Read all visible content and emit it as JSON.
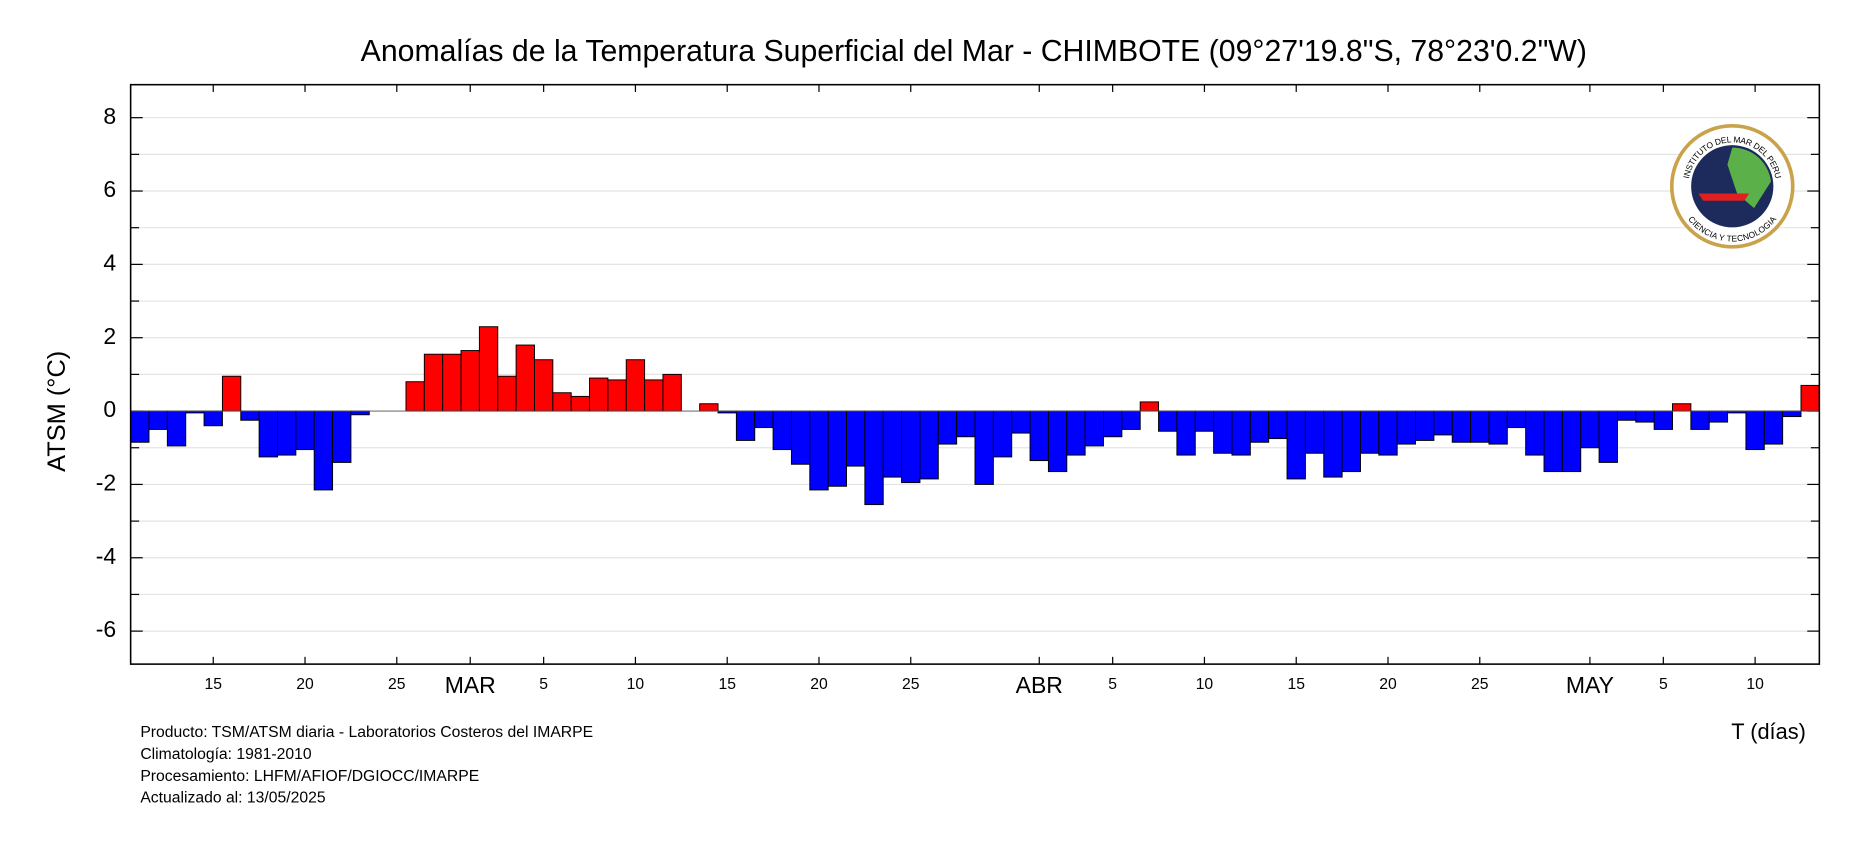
{
  "chart_data": {
    "type": "bar",
    "title": "Anomalías de la Temperatura Superficial del Mar - CHIMBOTE (09°27'19.8\"S, 78°23'0.2\"W)",
    "y_label": "ATSM (°C)",
    "x_label": "T (días)",
    "categories": [
      null,
      null,
      null,
      null,
      "15",
      null,
      null,
      null,
      null,
      "20",
      null,
      null,
      null,
      null,
      "25",
      null,
      null,
      null,
      "MAR",
      null,
      null,
      null,
      "5",
      null,
      null,
      null,
      null,
      "10",
      null,
      null,
      null,
      null,
      "15",
      null,
      null,
      null,
      null,
      "20",
      null,
      null,
      null,
      null,
      "25",
      null,
      null,
      null,
      null,
      null,
      null,
      "ABR",
      null,
      null,
      null,
      "5",
      null,
      null,
      null,
      null,
      "10",
      null,
      null,
      null,
      null,
      "15",
      null,
      null,
      null,
      null,
      "20",
      null,
      null,
      null,
      null,
      "25",
      null,
      null,
      null,
      null,
      null,
      "MAY",
      null,
      null,
      null,
      "5",
      null,
      null,
      null,
      null,
      "10",
      null,
      null,
      null
    ],
    "month_labels": [
      "MAR",
      "ABR",
      "MAY"
    ],
    "values": [
      -0.85,
      -0.5,
      -0.95,
      -0.05,
      -0.4,
      0.95,
      -0.25,
      -1.25,
      -1.2,
      -1.05,
      -2.15,
      -1.4,
      -0.1,
      0,
      0,
      0.8,
      1.55,
      1.55,
      1.65,
      2.3,
      0.95,
      1.8,
      1.4,
      0.5,
      0.4,
      0.9,
      0.85,
      1.4,
      0.85,
      1.0,
      0,
      0.2,
      -0.05,
      -0.8,
      -0.45,
      -1.05,
      -1.45,
      -2.15,
      -2.05,
      -1.5,
      -2.55,
      -1.8,
      -1.95,
      -1.85,
      -0.9,
      -0.7,
      -2.0,
      -1.25,
      -0.6,
      -1.35,
      -1.65,
      -1.2,
      -0.95,
      -0.7,
      -0.5,
      0.25,
      -0.55,
      -1.2,
      -0.55,
      -1.15,
      -1.2,
      -0.85,
      -0.75,
      -1.85,
      -1.15,
      -1.8,
      -1.65,
      -1.15,
      -1.2,
      -0.9,
      -0.8,
      -0.65,
      -0.85,
      -0.85,
      -0.9,
      -0.45,
      -1.2,
      -1.65,
      -1.65,
      -1.0,
      -1.4,
      -0.25,
      -0.3,
      -0.5,
      0.2,
      -0.5,
      -0.3,
      -0.05,
      -1.05,
      -0.9,
      -0.15,
      0.7
    ],
    "positive_color": "#ff0000",
    "negative_color": "#0000ff",
    "ylim": [
      -6.9,
      8.9
    ],
    "yticks": [
      -6,
      -4,
      -2,
      0,
      2,
      4,
      6,
      8
    ],
    "minor_yticks": [
      -5,
      -3,
      -1,
      1,
      3,
      5,
      7
    ],
    "grid": true,
    "footer": [
      "Producto: TSM/ATSM diaria - Laboratorios Costeros del IMARPE",
      "Climatología: 1981-2010",
      "Procesamiento: LHFM/AFIOF/DGIOCC/IMARPE",
      "Actualizado al: 13/05/2025"
    ],
    "logo": {
      "top_text": "INSTITUTO DEL MAR DEL PERU",
      "bottom_text": "CIENCIA Y TECNOLOGIA"
    }
  }
}
